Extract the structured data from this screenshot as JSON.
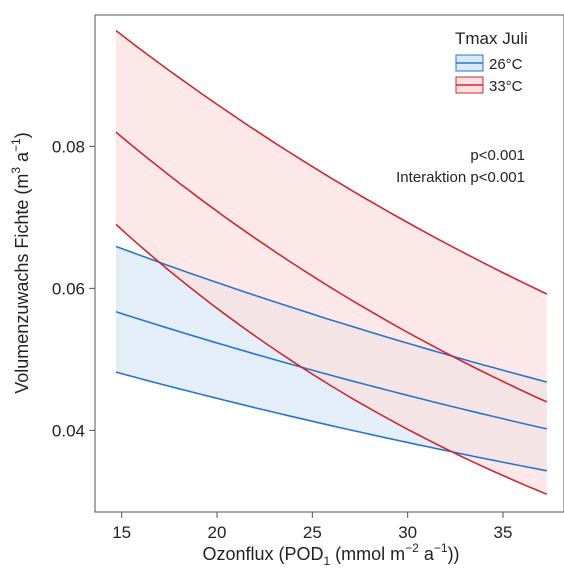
{
  "chart_data": {
    "type": "line",
    "title": "",
    "xlabel_main": "Ozonflux (POD",
    "xlabel_sub": "1",
    "xlabel_rest1": " (mmol m",
    "xlabel_sup": "−2",
    "xlabel_rest2": " a",
    "xlabel_sup2": "−1",
    "xlabel_end": "))",
    "ylabel_main": "Volumenzuwachs Fichte (m",
    "ylabel_sup": "3",
    "ylabel_rest": " a",
    "ylabel_sup2": "−1",
    "ylabel_end": ")",
    "xlim": [
      13.6,
      38.2
    ],
    "ylim": [
      0.0285,
      0.0985
    ],
    "xticks": [
      15,
      20,
      25,
      30,
      35
    ],
    "xtick_labels": [
      "15",
      "20",
      "25",
      "30",
      "35"
    ],
    "yticks": [
      0.04,
      0.06,
      0.08
    ],
    "ytick_labels": [
      "0.04",
      "0.06",
      "0.08"
    ],
    "legend": {
      "title": "Tmax Juli",
      "position": "top-right",
      "entries": [
        "26°C",
        "33°C"
      ]
    },
    "annotations": [
      "p<0.001",
      "Interaktion p<0.001"
    ],
    "series": [
      {
        "name": "26°C",
        "color": "#2a75cc",
        "fill": "#dbe8f5",
        "x": [
          14.7,
          37.3
        ],
        "fit": [
          0.0567,
          0.0402
        ],
        "upper": [
          0.0659,
          0.0468
        ],
        "lower": [
          0.0482,
          0.0343
        ]
      },
      {
        "name": "33°C",
        "color": "#cc2a33",
        "fill": "#fbe0e0",
        "x": [
          14.7,
          37.3
        ],
        "fit": [
          0.082,
          0.044
        ],
        "upper": [
          0.0963,
          0.0592
        ],
        "lower": [
          0.069,
          0.031
        ]
      }
    ]
  }
}
